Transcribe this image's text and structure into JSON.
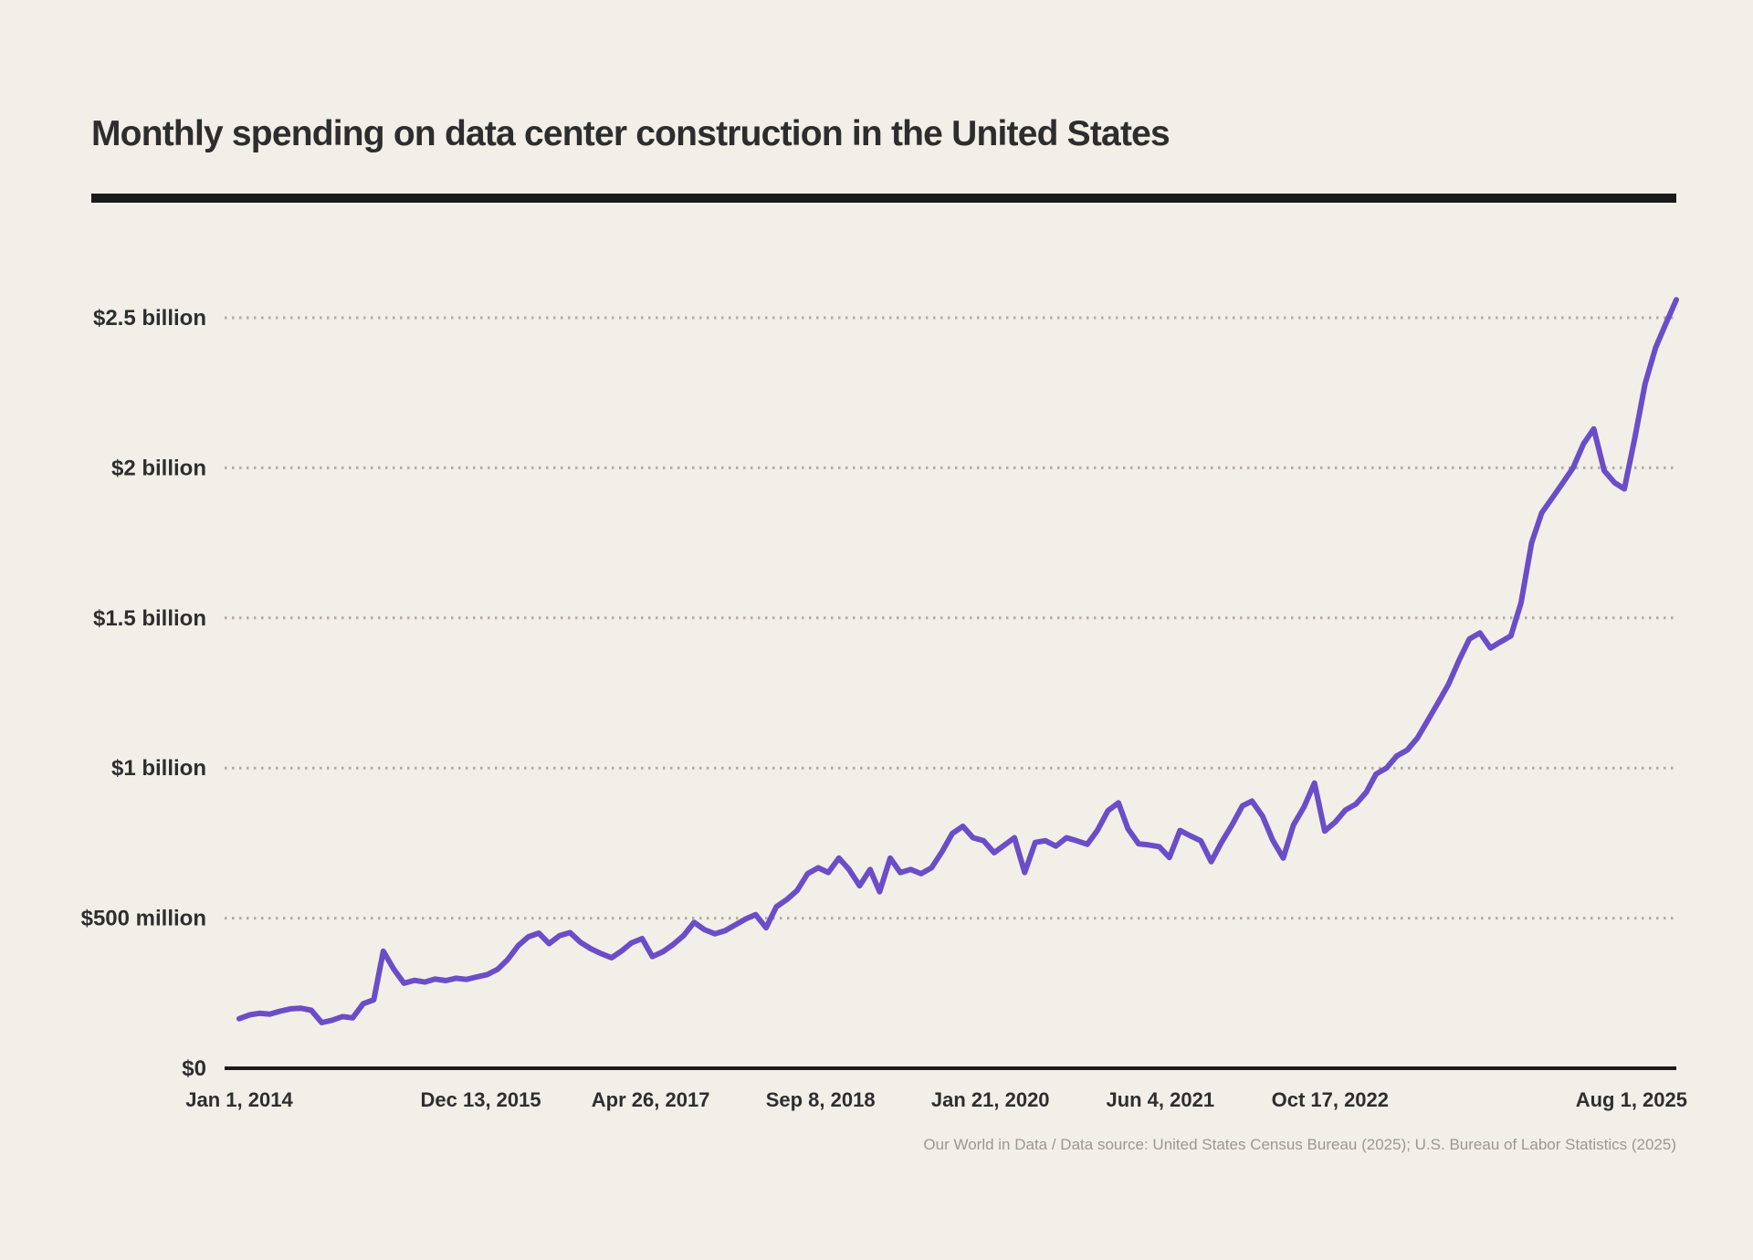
{
  "header": {
    "title": "Monthly spending on data center construction in the United States"
  },
  "footer": {
    "credit": "Our World in Data / Data source: United States Census Bureau (2025); U.S. Bureau of Labor Statistics (2025)"
  },
  "colors": {
    "background": "#f2efe8",
    "line": "#6b4dc8",
    "axis": "#1a1a1a",
    "grid": "#b0aca2",
    "title_text": "#2d2d2d",
    "tick_text": "#2e2e2e",
    "footer_text": "#9c988e"
  },
  "chart_data": {
    "type": "line",
    "title": "Monthly spending on data center construction in the United States",
    "xlabel": "",
    "ylabel": "",
    "unit": "US dollars per month",
    "frequency": "monthly",
    "x_domain": [
      "Jan 1, 2014",
      "Aug 1, 2025"
    ],
    "ylim_usd_million": [
      0,
      2650
    ],
    "grid": "dotted horizontal gridlines",
    "legend_position": "none",
    "y_ticks": [
      {
        "label": "$0",
        "value_usd_million": 0
      },
      {
        "label": "$500 million",
        "value_usd_million": 500
      },
      {
        "label": "$1 billion",
        "value_usd_million": 1000
      },
      {
        "label": "$1.5 billion",
        "value_usd_million": 1500
      },
      {
        "label": "$2 billion",
        "value_usd_million": 2000
      },
      {
        "label": "$2.5 billion",
        "value_usd_million": 2500
      }
    ],
    "x_ticks": [
      "Jan 1, 2014",
      "Dec 13, 2015",
      "Apr 26, 2017",
      "Sep 8, 2018",
      "Jan 21, 2020",
      "Jun 4, 2021",
      "Oct 17, 2022",
      "Aug 1, 2025"
    ],
    "series": [
      {
        "name": "Monthly spending on data center construction, United States",
        "points": "one value per month, Jan 2014 through Aug 2025 (estimated from chart)",
        "values_usd_million": [
          165,
          178,
          183,
          180,
          190,
          198,
          200,
          193,
          152,
          160,
          172,
          168,
          215,
          228,
          390,
          330,
          283,
          293,
          287,
          297,
          292,
          300,
          296,
          304,
          312,
          330,
          362,
          408,
          438,
          450,
          415,
          442,
          452,
          420,
          398,
          382,
          368,
          392,
          418,
          432,
          372,
          388,
          412,
          442,
          486,
          462,
          448,
          458,
          478,
          498,
          512,
          468,
          538,
          562,
          592,
          648,
          668,
          652,
          700,
          662,
          608,
          662,
          588,
          700,
          652,
          662,
          648,
          668,
          722,
          782,
          806,
          768,
          758,
          718,
          742,
          768,
          652,
          752,
          758,
          740,
          768,
          758,
          746,
          792,
          858,
          884,
          798,
          748,
          744,
          738,
          702,
          792,
          774,
          758,
          688,
          752,
          810,
          874,
          890,
          840,
          760,
          700,
          810,
          870,
          950,
          790,
          820,
          860,
          880,
          920,
          980,
          1000,
          1040,
          1060,
          1100,
          1160,
          1220,
          1280,
          1360,
          1430,
          1450,
          1400,
          1420,
          1440,
          1550,
          1750,
          1850,
          1900,
          1950,
          2000,
          2080,
          2130,
          1990,
          1950,
          1930,
          2100,
          2280,
          2400,
          2480,
          2560
        ]
      }
    ]
  }
}
